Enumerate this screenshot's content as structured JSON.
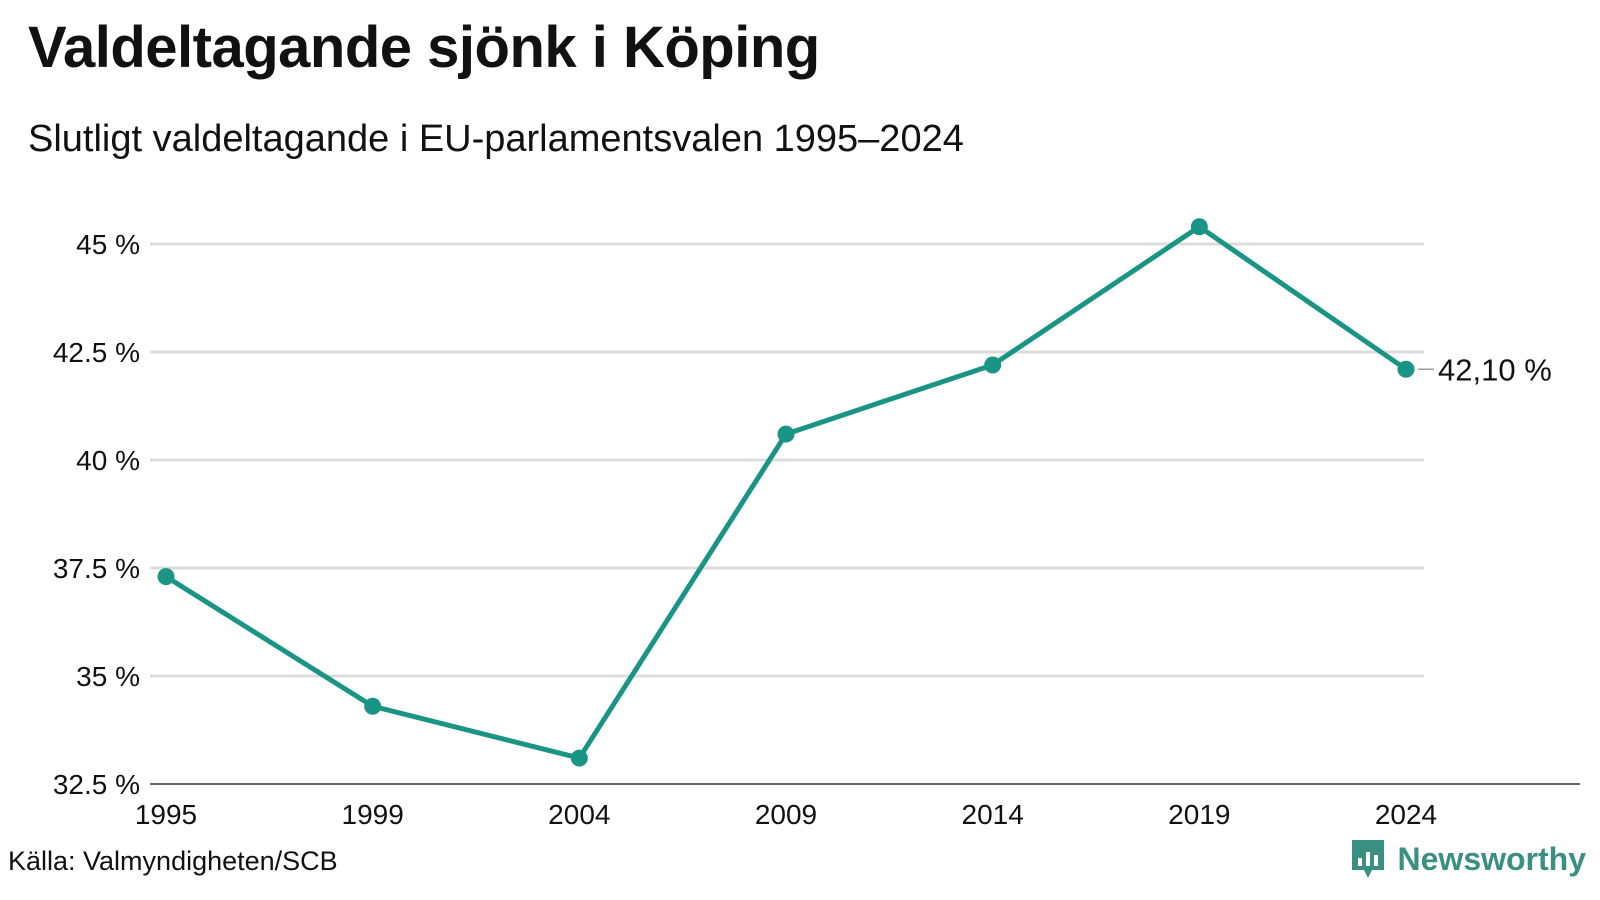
{
  "chart_data": {
    "type": "line",
    "title": "Valdeltagande sjönk i Köping",
    "subtitle": "Slutligt valdeltagande i EU-parlamentsvalen 1995–2024",
    "xlabel": "",
    "ylabel": "",
    "x": [
      "1995",
      "1999",
      "2004",
      "2009",
      "2014",
      "2019",
      "2024"
    ],
    "y_ticks": [
      32.5,
      35,
      37.5,
      40,
      42.5,
      45
    ],
    "y_tick_labels": [
      "32.5 %",
      "35 %",
      "37.5 %",
      "40 %",
      "42.5 %",
      "45 %"
    ],
    "ylim": [
      32.5,
      45
    ],
    "grid": true,
    "series": [
      {
        "values": [
          37.3,
          34.3,
          33.1,
          40.6,
          42.2,
          45.4,
          42.1
        ],
        "color": "#1a9485",
        "end_label": "42,10 %"
      }
    ]
  },
  "footer": {
    "source": "Källa: Valmyndigheten/SCB",
    "brand": "Newsworthy",
    "brand_icon": "newsworthy-logo-icon"
  },
  "colors": {
    "line": "#1a9485",
    "grid": "#dcdcdc",
    "brand": "#3a8f80"
  }
}
